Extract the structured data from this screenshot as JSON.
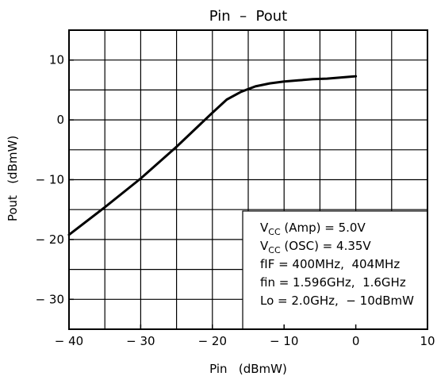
{
  "chart_data": {
    "type": "line",
    "title": "Pin  –  Pout",
    "xlabel": "Pin   (dBmW)",
    "ylabel": "Pout   (dBmW)",
    "xlim": [
      -40,
      10
    ],
    "ylim": [
      -35,
      15
    ],
    "grid": true,
    "x_ticks": [
      {
        "value": -40,
        "label": "− 40"
      },
      {
        "value": -30,
        "label": "− 30"
      },
      {
        "value": -20,
        "label": "− 20"
      },
      {
        "value": -10,
        "label": "− 10"
      },
      {
        "value": 0,
        "label": "0"
      },
      {
        "value": 10,
        "label": "10"
      }
    ],
    "y_ticks": [
      {
        "value": 10,
        "label": "10"
      },
      {
        "value": 0,
        "label": "0"
      },
      {
        "value": -10,
        "label": "− 10"
      },
      {
        "value": -20,
        "label": "− 20"
      },
      {
        "value": -30,
        "label": "− 30"
      }
    ],
    "series": [
      {
        "x": [
          -40,
          -35,
          -30,
          -25,
          -20,
          -18,
          -16,
          -14,
          -12,
          -10,
          -8,
          -6,
          -4,
          -2,
          0
        ],
        "y": [
          -19.2,
          -14.6,
          -9.8,
          -4.5,
          1.2,
          3.4,
          4.7,
          5.6,
          6.1,
          6.4,
          6.6,
          6.8,
          6.9,
          7.1,
          7.3
        ]
      }
    ],
    "annotation": {
      "lines": [
        {
          "pre": "V",
          "sub": "CC",
          "post": " (Amp) = 5.0V"
        },
        {
          "pre": "V",
          "sub": "CC",
          "post": " (OSC) = 4.35V"
        },
        {
          "pre": "fIF = 400MHz,  404MHz",
          "sub": "",
          "post": ""
        },
        {
          "pre": "fin = 1.596GHz,  1.6GHz",
          "sub": "",
          "post": ""
        },
        {
          "pre": "Lo = 2.0GHz,  − 10dBmW",
          "sub": "",
          "post": ""
        }
      ]
    }
  }
}
